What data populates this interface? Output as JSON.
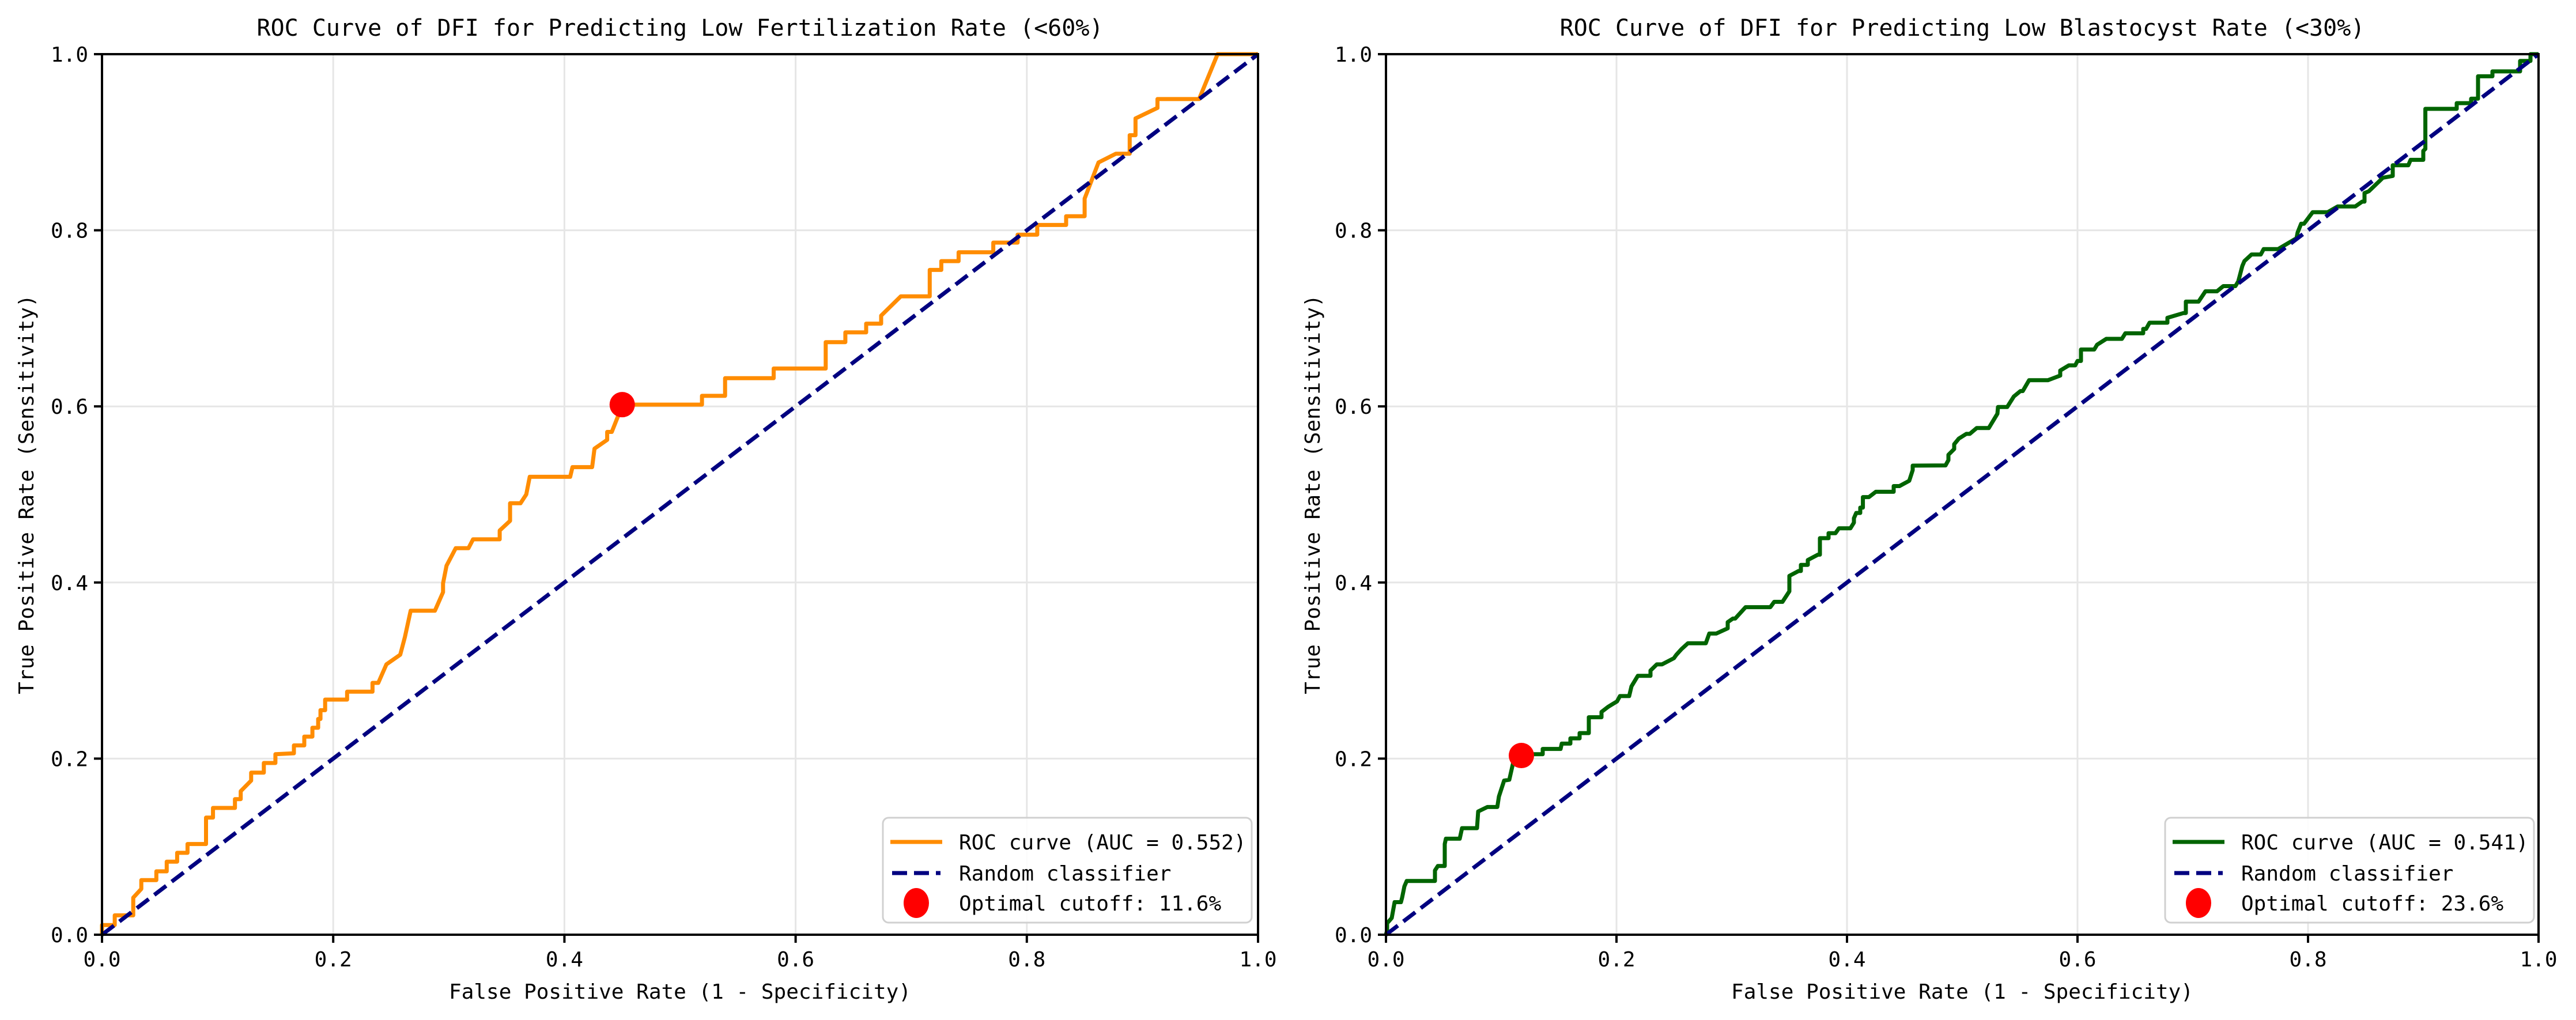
{
  "chart_data": [
    {
      "type": "line",
      "title": "ROC Curve of DFI for Predicting Low Fertilization Rate (<60%)",
      "xlabel": "False Positive Rate (1 - Specificity)",
      "ylabel": "True Positive Rate (Sensitivity)",
      "xlim": [
        0,
        1
      ],
      "ylim": [
        0,
        1
      ],
      "xticks": [
        "0.0",
        "0.2",
        "0.4",
        "0.6",
        "0.8",
        "1.0"
      ],
      "yticks": [
        "0.0",
        "0.2",
        "0.4",
        "0.6",
        "0.8",
        "1.0"
      ],
      "grid": true,
      "legend_position": "bottom-right",
      "series": [
        {
          "name": "ROC curve (AUC = 0.552)",
          "color": "#ff8c00",
          "style": "solid",
          "auc": 0.552,
          "x": [
            0.0,
            0.0,
            0.011,
            0.011,
            0.027,
            0.027,
            0.034,
            0.034,
            0.047,
            0.047,
            0.056,
            0.056,
            0.065,
            0.065,
            0.074,
            0.074,
            0.09,
            0.09,
            0.096,
            0.096,
            0.115,
            0.115,
            0.12,
            0.12,
            0.129,
            0.129,
            0.14,
            0.14,
            0.15,
            0.15,
            0.166,
            0.166,
            0.175,
            0.175,
            0.182,
            0.182,
            0.187,
            0.187,
            0.189,
            0.189,
            0.193,
            0.193,
            0.212,
            0.212,
            0.234,
            0.234,
            0.239,
            0.246,
            0.258,
            0.262,
            0.267,
            0.288,
            0.295,
            0.295,
            0.298,
            0.306,
            0.317,
            0.321,
            0.344,
            0.344,
            0.353,
            0.353,
            0.362,
            0.367,
            0.37,
            0.405,
            0.407,
            0.424,
            0.426,
            0.437,
            0.437,
            0.441,
            0.447,
            0.45,
            0.519,
            0.519,
            0.539,
            0.539,
            0.581,
            0.581,
            0.626,
            0.626,
            0.643,
            0.643,
            0.661,
            0.661,
            0.674,
            0.674,
            0.691,
            0.716,
            0.716,
            0.726,
            0.726,
            0.741,
            0.741,
            0.771,
            0.771,
            0.792,
            0.792,
            0.809,
            0.809,
            0.834,
            0.834,
            0.85,
            0.85,
            0.862,
            0.877,
            0.889,
            0.889,
            0.894,
            0.894,
            0.913,
            0.913,
            0.949,
            0.965,
            0.98,
            1.0
          ],
          "y": [
            0.0,
            0.011,
            0.011,
            0.022,
            0.022,
            0.042,
            0.052,
            0.062,
            0.062,
            0.072,
            0.072,
            0.083,
            0.083,
            0.093,
            0.093,
            0.103,
            0.103,
            0.133,
            0.133,
            0.144,
            0.144,
            0.154,
            0.154,
            0.163,
            0.175,
            0.184,
            0.184,
            0.195,
            0.195,
            0.205,
            0.206,
            0.215,
            0.215,
            0.225,
            0.225,
            0.235,
            0.235,
            0.245,
            0.245,
            0.255,
            0.255,
            0.267,
            0.267,
            0.276,
            0.276,
            0.286,
            0.286,
            0.307,
            0.318,
            0.338,
            0.368,
            0.368,
            0.389,
            0.399,
            0.419,
            0.439,
            0.439,
            0.449,
            0.449,
            0.459,
            0.47,
            0.49,
            0.49,
            0.5,
            0.52,
            0.52,
            0.531,
            0.531,
            0.552,
            0.562,
            0.571,
            0.571,
            0.591,
            0.602,
            0.602,
            0.612,
            0.612,
            0.632,
            0.632,
            0.643,
            0.643,
            0.673,
            0.673,
            0.684,
            0.684,
            0.694,
            0.694,
            0.703,
            0.725,
            0.725,
            0.755,
            0.755,
            0.765,
            0.765,
            0.775,
            0.775,
            0.786,
            0.786,
            0.795,
            0.795,
            0.806,
            0.806,
            0.816,
            0.816,
            0.836,
            0.877,
            0.887,
            0.887,
            0.908,
            0.908,
            0.927,
            0.939,
            0.949,
            0.949,
            1.0,
            1.0,
            1.0
          ]
        },
        {
          "name": "Random classifier",
          "color": "#000080",
          "style": "dashed",
          "x": [
            0,
            1
          ],
          "y": [
            0,
            1
          ]
        }
      ],
      "optimal_point": {
        "label": "Optimal cutoff: 11.6%",
        "cutoff_percent": 11.6,
        "fpr": 0.45,
        "tpr": 0.602,
        "color": "#ff0000"
      }
    },
    {
      "type": "line",
      "title": "ROC Curve of DFI for Predicting Low Blastocyst Rate (<30%)",
      "xlabel": "False Positive Rate (1 - Specificity)",
      "ylabel": "True Positive Rate (Sensitivity)",
      "xlim": [
        0,
        1
      ],
      "ylim": [
        0,
        1
      ],
      "xticks": [
        "0.0",
        "0.2",
        "0.4",
        "0.6",
        "0.8",
        "1.0"
      ],
      "yticks": [
        "0.0",
        "0.2",
        "0.4",
        "0.6",
        "0.8",
        "1.0"
      ],
      "grid": true,
      "legend_position": "bottom-right",
      "series": [
        {
          "name": "ROC curve (AUC = 0.541)",
          "color": "#006400",
          "style": "solid",
          "auc": 0.541,
          "x": [
            0.0,
            0.001,
            0.001,
            0.005,
            0.0075,
            0.013,
            0.014,
            0.016,
            0.018,
            0.0425,
            0.0425,
            0.045,
            0.051,
            0.051,
            0.052,
            0.064,
            0.066,
            0.079,
            0.08,
            0.088,
            0.0966,
            0.098,
            0.1025,
            0.107,
            0.111,
            0.1175,
            0.119,
            0.136,
            0.136,
            0.1515,
            0.1525,
            0.16,
            0.16,
            0.168,
            0.168,
            0.176,
            0.176,
            0.187,
            0.187,
            0.193,
            0.2005,
            0.203,
            0.211,
            0.213,
            0.2185,
            0.2295,
            0.2295,
            0.235,
            0.2395,
            0.2498,
            0.252,
            0.2565,
            0.262,
            0.2775,
            0.2805,
            0.2865,
            0.2965,
            0.2965,
            0.301,
            0.303,
            0.312,
            0.3335,
            0.3368,
            0.344,
            0.35,
            0.35,
            0.358,
            0.36,
            0.36,
            0.366,
            0.366,
            0.3748,
            0.3765,
            0.3765,
            0.384,
            0.384,
            0.39,
            0.393,
            0.403,
            0.406,
            0.406,
            0.408,
            0.4115,
            0.4115,
            0.4138,
            0.4138,
            0.419,
            0.425,
            0.4405,
            0.4405,
            0.4455,
            0.454,
            0.457,
            0.457,
            0.4855,
            0.488,
            0.488,
            0.493,
            0.493,
            0.497,
            0.5035,
            0.5065,
            0.5125,
            0.523,
            0.5305,
            0.531,
            0.539,
            0.5448,
            0.5505,
            0.5525,
            0.558,
            0.5745,
            0.585,
            0.585,
            0.5925,
            0.598,
            0.6,
            0.603,
            0.603,
            0.6145,
            0.617,
            0.625,
            0.6385,
            0.6415,
            0.657,
            0.657,
            0.6595,
            0.6625,
            0.678,
            0.678,
            0.692,
            0.694,
            0.694,
            0.705,
            0.711,
            0.721,
            0.7265,
            0.737,
            0.7395,
            0.743,
            0.7448,
            0.751,
            0.759,
            0.7615,
            0.774,
            0.79,
            0.791,
            0.794,
            0.7965,
            0.804,
            0.817,
            0.8257,
            0.841,
            0.847,
            0.849,
            0.849,
            0.8528,
            0.865,
            0.8735,
            0.8735,
            0.887,
            0.889,
            0.9,
            0.9,
            0.9018,
            0.9018,
            0.929,
            0.929,
            0.9415,
            0.9415,
            0.9475,
            0.9475,
            0.96,
            0.96,
            0.984,
            0.984,
            0.993,
            0.993,
            1.0
          ],
          "y": [
            0.0,
            0.005,
            0.013,
            0.019,
            0.037,
            0.037,
            0.042,
            0.055,
            0.061,
            0.061,
            0.073,
            0.078,
            0.078,
            0.103,
            0.109,
            0.109,
            0.121,
            0.121,
            0.14,
            0.145,
            0.145,
            0.157,
            0.175,
            0.176,
            0.199,
            0.2,
            0.205,
            0.205,
            0.211,
            0.211,
            0.217,
            0.217,
            0.223,
            0.223,
            0.229,
            0.229,
            0.247,
            0.247,
            0.253,
            0.259,
            0.265,
            0.271,
            0.271,
            0.282,
            0.294,
            0.294,
            0.3,
            0.307,
            0.307,
            0.314,
            0.318,
            0.3245,
            0.331,
            0.331,
            0.342,
            0.342,
            0.348,
            0.355,
            0.359,
            0.359,
            0.372,
            0.372,
            0.378,
            0.378,
            0.39,
            0.4075,
            0.413,
            0.413,
            0.42,
            0.42,
            0.4255,
            0.4316,
            0.4316,
            0.4503,
            0.4503,
            0.456,
            0.456,
            0.4616,
            0.4616,
            0.468,
            0.473,
            0.479,
            0.479,
            0.485,
            0.485,
            0.497,
            0.497,
            0.503,
            0.503,
            0.5095,
            0.5095,
            0.5155,
            0.5276,
            0.5327,
            0.533,
            0.539,
            0.545,
            0.5516,
            0.557,
            0.5634,
            0.5688,
            0.5688,
            0.5754,
            0.5754,
            0.5917,
            0.5993,
            0.5993,
            0.6113,
            0.6174,
            0.6174,
            0.6298,
            0.6298,
            0.635,
            0.6407,
            0.6466,
            0.6466,
            0.6516,
            0.6516,
            0.6646,
            0.6646,
            0.67,
            0.6767,
            0.6767,
            0.683,
            0.683,
            0.688,
            0.688,
            0.695,
            0.695,
            0.7006,
            0.706,
            0.706,
            0.719,
            0.719,
            0.7307,
            0.7307,
            0.7366,
            0.7366,
            0.742,
            0.7595,
            0.765,
            0.7725,
            0.7725,
            0.7786,
            0.7786,
            0.791,
            0.7976,
            0.8074,
            0.8074,
            0.8205,
            0.8205,
            0.827,
            0.827,
            0.8325,
            0.8325,
            0.8423,
            0.8444,
            0.8597,
            0.8617,
            0.8738,
            0.8738,
            0.88,
            0.88,
            0.8902,
            0.8924,
            0.9379,
            0.9379,
            0.9444,
            0.9444,
            0.9494,
            0.9494,
            0.9749,
            0.9749,
            0.9804,
            0.9804,
            0.9923,
            0.9923,
            1.0,
            1.0
          ]
        },
        {
          "name": "Random classifier",
          "color": "#000080",
          "style": "dashed",
          "x": [
            0,
            1
          ],
          "y": [
            0,
            1
          ]
        }
      ],
      "optimal_point": {
        "label": "Optimal cutoff: 23.6%",
        "cutoff_percent": 23.6,
        "fpr": 0.1175,
        "tpr": 0.2035,
        "color": "#ff0000"
      }
    }
  ]
}
